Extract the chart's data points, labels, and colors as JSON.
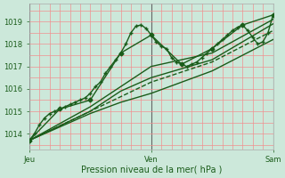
{
  "title": "",
  "xlabel": "Pression niveau de la mer( hPa )",
  "ylim": [
    1013.3,
    1019.8
  ],
  "xlim": [
    0,
    48
  ],
  "yticks": [
    1014,
    1015,
    1016,
    1017,
    1018,
    1019
  ],
  "xtick_positions": [
    0,
    24,
    48
  ],
  "xtick_labels": [
    "Jeu",
    "Ven",
    "Sam"
  ],
  "bg_color": "#cce8da",
  "grid_color_minor": "#f09090",
  "line_color": "#1a5c1a",
  "series": [
    {
      "x": [
        0,
        1,
        2,
        3,
        4,
        5,
        6,
        7,
        8,
        9,
        10,
        11,
        12,
        13,
        14,
        15,
        16,
        17,
        18,
        19,
        20,
        21,
        22,
        23,
        24,
        25,
        26,
        27,
        28,
        29,
        30,
        31,
        32,
        33,
        34,
        35,
        36,
        37,
        38,
        39,
        40,
        41,
        42,
        43,
        44,
        45,
        46,
        47,
        48
      ],
      "y": [
        1013.7,
        1014.0,
        1014.4,
        1014.7,
        1014.9,
        1015.0,
        1015.1,
        1015.2,
        1015.3,
        1015.4,
        1015.5,
        1015.6,
        1015.8,
        1016.1,
        1016.3,
        1016.7,
        1017.0,
        1017.3,
        1017.6,
        1018.0,
        1018.5,
        1018.8,
        1018.85,
        1018.7,
        1018.4,
        1018.1,
        1017.9,
        1017.8,
        1017.4,
        1017.2,
        1017.1,
        1017.0,
        1017.1,
        1017.2,
        1017.4,
        1017.6,
        1017.8,
        1018.0,
        1018.2,
        1018.4,
        1018.6,
        1018.75,
        1018.85,
        1018.6,
        1018.3,
        1018.0,
        1018.1,
        1018.5,
        1019.3
      ],
      "marker": "+",
      "markersize": 3.5,
      "lw": 1.0,
      "ls": "-"
    },
    {
      "x": [
        0,
        6,
        12,
        18,
        24,
        30,
        36,
        42,
        48
      ],
      "y": [
        1013.7,
        1015.1,
        1015.5,
        1017.6,
        1018.4,
        1017.1,
        1017.8,
        1018.85,
        1019.3
      ],
      "marker": "D",
      "markersize": 2.5,
      "lw": 1.0,
      "ls": "-"
    },
    {
      "x": [
        0,
        12,
        24,
        36,
        48
      ],
      "y": [
        1013.7,
        1015.2,
        1017.0,
        1017.6,
        1019.1
      ],
      "marker": null,
      "markersize": 0,
      "lw": 1.0,
      "ls": "-"
    },
    {
      "x": [
        0,
        12,
        18,
        24,
        36,
        48
      ],
      "y": [
        1013.7,
        1015.0,
        1015.9,
        1016.5,
        1017.3,
        1018.9
      ],
      "marker": null,
      "markersize": 0,
      "lw": 1.0,
      "ls": "-"
    },
    {
      "x": [
        0,
        24,
        36,
        48
      ],
      "y": [
        1013.7,
        1016.3,
        1017.2,
        1018.6
      ],
      "marker": null,
      "markersize": 0,
      "lw": 1.0,
      "ls": "--"
    },
    {
      "x": [
        0,
        12,
        18,
        24,
        36,
        48
      ],
      "y": [
        1013.7,
        1014.9,
        1015.4,
        1015.8,
        1016.8,
        1018.2
      ],
      "marker": null,
      "markersize": 0,
      "lw": 1.0,
      "ls": "-"
    }
  ]
}
